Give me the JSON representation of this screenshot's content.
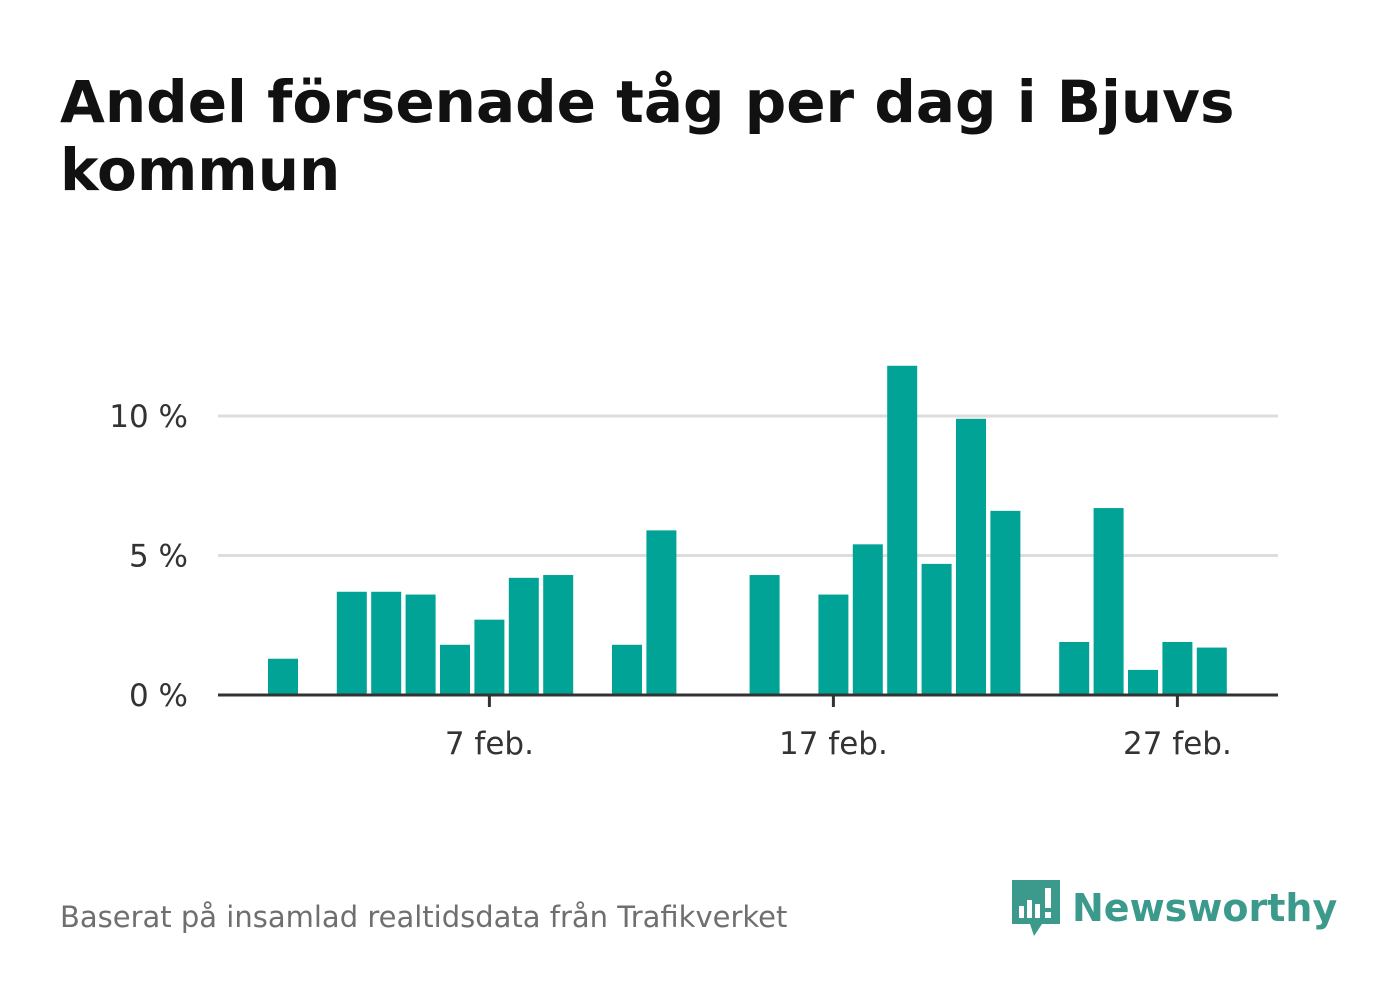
{
  "title": "Andel försenade tåg per dag i Bjuvs kommun",
  "caption": "Baserat på insamlad realtidsdata från Trafikverket",
  "brand": {
    "name": "Newsworthy",
    "icon": "newsworthy-logo-icon",
    "color": "#3c9a8d"
  },
  "colors": {
    "bar": "#00a396",
    "grid": "#dddddd",
    "axis": "#333333"
  },
  "chart_data": {
    "type": "bar",
    "title": "Andel försenade tåg per dag i Bjuvs kommun",
    "xlabel": "",
    "ylabel": "",
    "ylim": [
      0,
      12
    ],
    "yticks": [
      0,
      5,
      10
    ],
    "ytick_labels": [
      "0 %",
      "5 %",
      "10 %"
    ],
    "xticks": [
      7,
      17,
      27
    ],
    "xtick_labels": [
      "7 feb.",
      "17 feb.",
      "27 feb."
    ],
    "grid": true,
    "categories": [
      1,
      2,
      3,
      4,
      5,
      6,
      7,
      8,
      9,
      10,
      11,
      12,
      13,
      14,
      15,
      16,
      17,
      18,
      19,
      20,
      21,
      22,
      23,
      24,
      25,
      26,
      27,
      28
    ],
    "values": [
      1.3,
      0,
      3.7,
      3.7,
      3.6,
      1.8,
      2.7,
      4.2,
      4.3,
      0,
      1.8,
      5.9,
      0,
      0,
      4.3,
      0,
      3.6,
      5.4,
      11.8,
      4.7,
      9.9,
      6.6,
      0,
      1.9,
      6.7,
      0.9,
      1.9,
      1.7
    ]
  }
}
